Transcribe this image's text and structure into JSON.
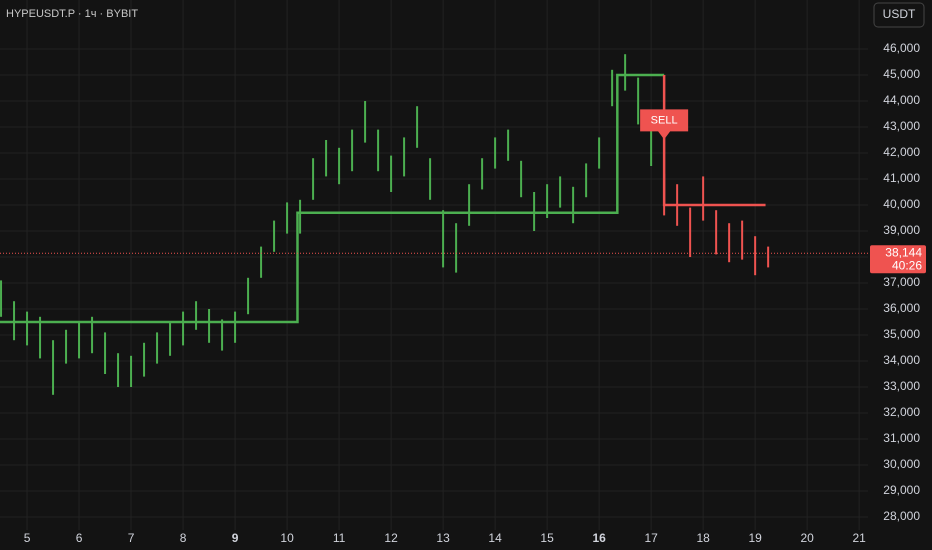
{
  "chart_data": {
    "type": "ohlc_range",
    "symbol": "HYPEUSDT.P · 1ч · BYBIT",
    "currency_button": "USDT",
    "xlim": [
      4.48,
      21.17
    ],
    "ylim": [
      27500,
      47885
    ],
    "xticks": [
      5,
      6,
      7,
      8,
      9,
      10,
      11,
      12,
      13,
      14,
      15,
      16,
      17,
      18,
      19,
      20,
      21
    ],
    "xticks_bold": [
      9,
      16
    ],
    "yticks": [
      {
        "value": 28000,
        "label": "28,000"
      },
      {
        "value": 29000,
        "label": "29,000"
      },
      {
        "value": 30000,
        "label": "30,000"
      },
      {
        "value": 31000,
        "label": "31,000"
      },
      {
        "value": 32000,
        "label": "32,000"
      },
      {
        "value": 33000,
        "label": "33,000"
      },
      {
        "value": 34000,
        "label": "34,000"
      },
      {
        "value": 35000,
        "label": "35,000"
      },
      {
        "value": 36000,
        "label": "36,000"
      },
      {
        "value": 37000,
        "label": "37,000"
      },
      {
        "value": 38000,
        "label": "38,000"
      },
      {
        "value": 39000,
        "label": "39,000"
      },
      {
        "value": 40000,
        "label": "40,000"
      },
      {
        "value": 41000,
        "label": "41,000"
      },
      {
        "value": 42000,
        "label": "42,000"
      },
      {
        "value": 43000,
        "label": "43,000"
      },
      {
        "value": 44000,
        "label": "44,000"
      },
      {
        "value": 45000,
        "label": "45,000"
      },
      {
        "value": 46000,
        "label": "46,000"
      }
    ],
    "grid": true,
    "up_color": "#4caf50",
    "down_color": "#ef5350",
    "sell_x": 17.25,
    "x": [
      4.5,
      4.75,
      5,
      5.25,
      5.5,
      5.75,
      6,
      6.25,
      6.5,
      6.75,
      7,
      7.25,
      7.5,
      7.75,
      8,
      8.25,
      8.5,
      8.75,
      9,
      9.25,
      9.5,
      9.75,
      10,
      10.25,
      10.5,
      10.75,
      11,
      11.25,
      11.5,
      11.75,
      12,
      12.25,
      12.5,
      12.75,
      13,
      13.25,
      13.5,
      13.75,
      14,
      14.25,
      14.5,
      14.75,
      15,
      15.25,
      15.5,
      15.75,
      16,
      16.25,
      16.5,
      16.75,
      17,
      17.25,
      17.5,
      17.75,
      18,
      18.25,
      18.5,
      18.75,
      19,
      19.25
    ],
    "high": [
      37100,
      36300,
      35900,
      35700,
      34800,
      35200,
      35500,
      35700,
      35100,
      34300,
      34200,
      34700,
      35100,
      35500,
      35900,
      36300,
      36000,
      35600,
      35900,
      37200,
      38400,
      39400,
      40100,
      40200,
      41800,
      42500,
      42200,
      42900,
      44000,
      42900,
      41900,
      42600,
      43800,
      41800,
      39800,
      39300,
      40800,
      41800,
      42600,
      42900,
      41700,
      40500,
      40800,
      41100,
      40700,
      41600,
      42600,
      45200,
      45800,
      44900,
      43200,
      41200,
      40800,
      39900,
      41100,
      39800,
      39300,
      39400,
      38800,
      38400
    ],
    "low": [
      35700,
      34800,
      34600,
      34100,
      32700,
      33900,
      34100,
      34300,
      33500,
      33000,
      33000,
      33400,
      33900,
      34200,
      34600,
      35200,
      34700,
      34400,
      34700,
      35800,
      37200,
      38200,
      38900,
      38900,
      40200,
      41100,
      40800,
      41300,
      42400,
      41300,
      40500,
      41100,
      42200,
      40200,
      37600,
      37400,
      39200,
      40600,
      41400,
      41700,
      40300,
      39000,
      39500,
      39900,
      39300,
      40300,
      41400,
      43800,
      44400,
      43100,
      41500,
      39600,
      39200,
      38000,
      39400,
      38100,
      37800,
      37900,
      37300,
      37600
    ],
    "trend_up": {
      "x": [
        4.48,
        10.2,
        10.2,
        16.35,
        16.35,
        17.25
      ],
      "values": [
        35500,
        35500,
        39700,
        39700,
        45000,
        45000
      ]
    },
    "trend_down": {
      "x": [
        17.25,
        17.25,
        19.2
      ],
      "values": [
        45000,
        40000,
        40000
      ]
    },
    "signal": {
      "text": "SELL",
      "x": 17.25,
      "value": 42600
    },
    "last_price": {
      "value": 38144,
      "label": "38,144"
    },
    "countdown": "40:26"
  }
}
